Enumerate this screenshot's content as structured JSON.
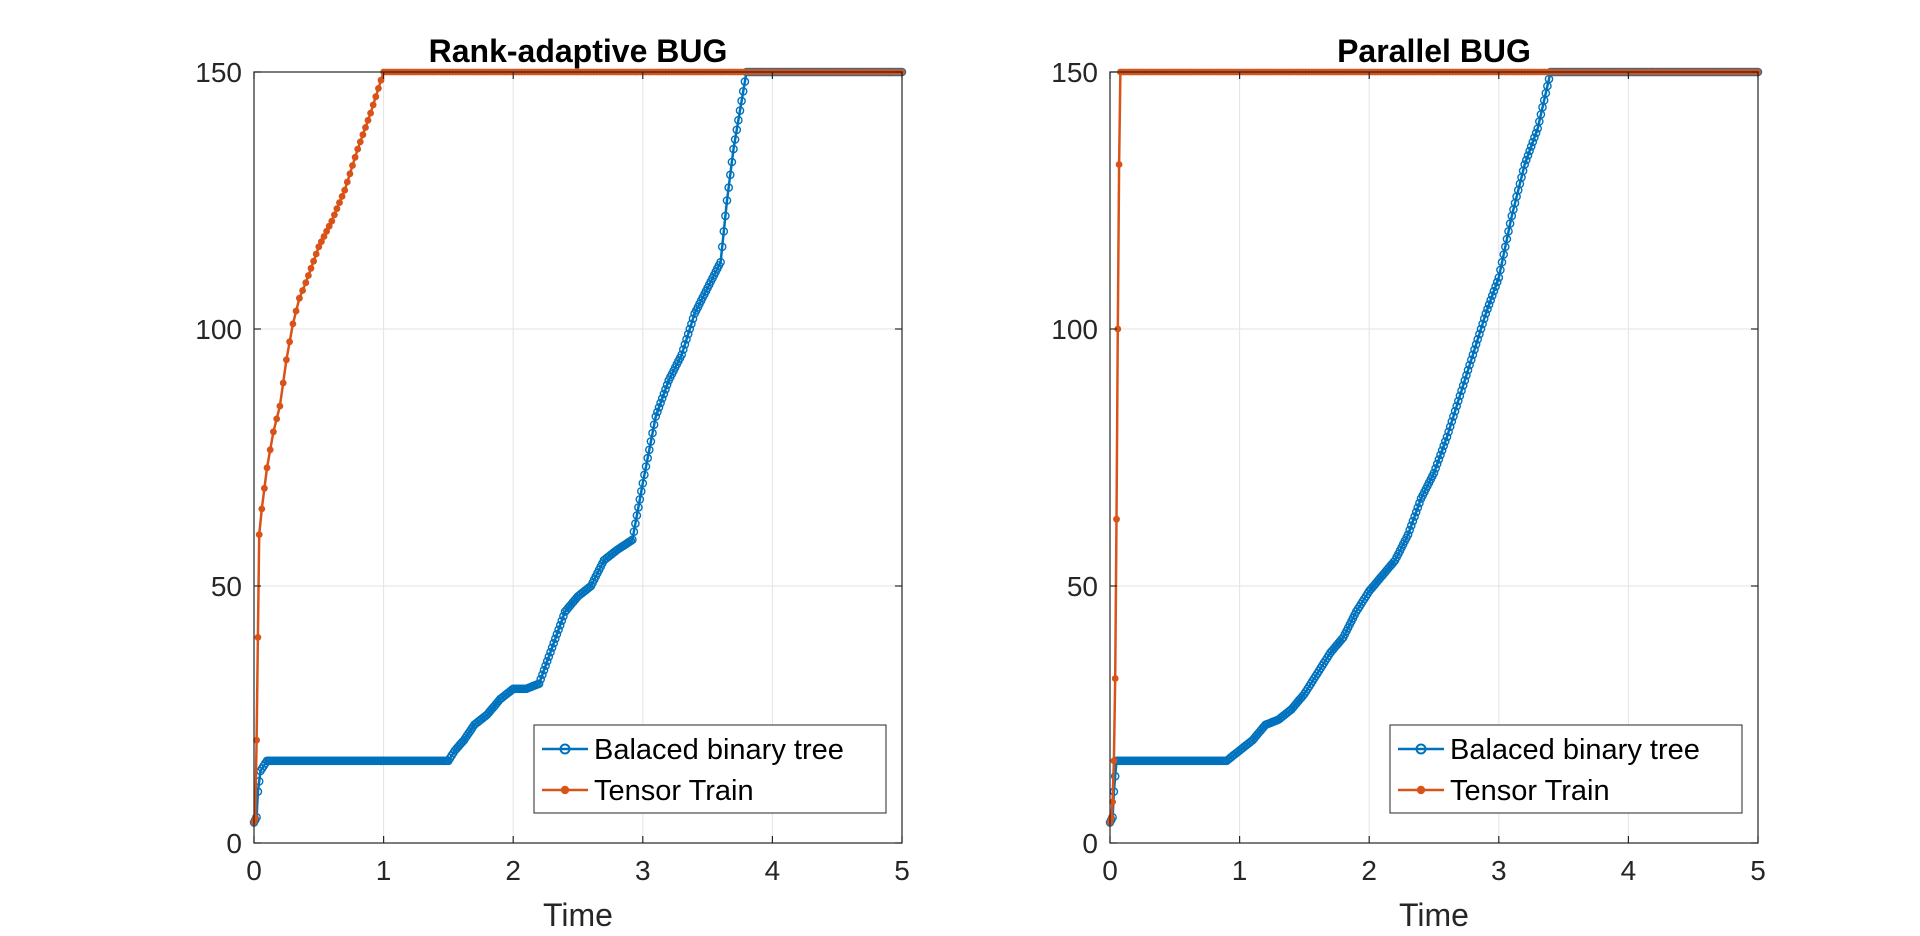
{
  "chart_data": [
    {
      "type": "line",
      "title": "Rank-adaptive BUG",
      "xlabel": "Time",
      "ylabel": "",
      "xlim": [
        0,
        5
      ],
      "ylim": [
        0,
        150
      ],
      "xticks": [
        "0",
        "1",
        "2",
        "3",
        "4",
        "5"
      ],
      "yticks": [
        "0",
        "50",
        "100",
        "150"
      ],
      "grid": true,
      "legend_position": "bottom-right",
      "series": [
        {
          "name": "Balaced binary tree",
          "color": "#0072BD",
          "marker": "circle",
          "points": [
            [
              0,
              4
            ],
            [
              0.02,
              5
            ],
            [
              0.03,
              10
            ],
            [
              0.05,
              14
            ],
            [
              0.1,
              16
            ],
            [
              0.5,
              16
            ],
            [
              1.0,
              16
            ],
            [
              1.5,
              16
            ],
            [
              1.55,
              18
            ],
            [
              1.62,
              20
            ],
            [
              1.7,
              23
            ],
            [
              1.8,
              25
            ],
            [
              1.9,
              28
            ],
            [
              2.0,
              30
            ],
            [
              2.1,
              30
            ],
            [
              2.2,
              31
            ],
            [
              2.3,
              38
            ],
            [
              2.4,
              45
            ],
            [
              2.5,
              48
            ],
            [
              2.6,
              50
            ],
            [
              2.7,
              55
            ],
            [
              2.8,
              57
            ],
            [
              2.92,
              59
            ],
            [
              3.0,
              70
            ],
            [
              3.1,
              83
            ],
            [
              3.2,
              90
            ],
            [
              3.3,
              95
            ],
            [
              3.4,
              103
            ],
            [
              3.5,
              108
            ],
            [
              3.6,
              113
            ],
            [
              3.65,
              125
            ],
            [
              3.7,
              135
            ],
            [
              3.8,
              150
            ],
            [
              4.0,
              150
            ],
            [
              4.5,
              150
            ],
            [
              5.0,
              150
            ]
          ]
        },
        {
          "name": "Tensor Train",
          "color": "#D95319",
          "marker": "dot",
          "points": [
            [
              0,
              4
            ],
            [
              0.01,
              5
            ],
            [
              0.02,
              20
            ],
            [
              0.03,
              40
            ],
            [
              0.04,
              60
            ],
            [
              0.06,
              65
            ],
            [
              0.1,
              73
            ],
            [
              0.15,
              80
            ],
            [
              0.2,
              85
            ],
            [
              0.25,
              94
            ],
            [
              0.3,
              101
            ],
            [
              0.35,
              106
            ],
            [
              0.4,
              109
            ],
            [
              0.5,
              116
            ],
            [
              0.6,
              121
            ],
            [
              0.7,
              127
            ],
            [
              0.8,
              135
            ],
            [
              0.9,
              142
            ],
            [
              1.0,
              150
            ],
            [
              2.0,
              150
            ],
            [
              3.0,
              150
            ],
            [
              4.0,
              150
            ],
            [
              5.0,
              150
            ]
          ]
        }
      ]
    },
    {
      "type": "line",
      "title": "Parallel BUG",
      "xlabel": "Time",
      "ylabel": "",
      "xlim": [
        0,
        5
      ],
      "ylim": [
        0,
        150
      ],
      "xticks": [
        "0",
        "1",
        "2",
        "3",
        "4",
        "5"
      ],
      "yticks": [
        "0",
        "50",
        "100",
        "150"
      ],
      "grid": true,
      "legend_position": "bottom-right",
      "series": [
        {
          "name": "Balaced binary tree",
          "color": "#0072BD",
          "marker": "circle",
          "points": [
            [
              0,
              4
            ],
            [
              0.02,
              5
            ],
            [
              0.03,
              10
            ],
            [
              0.05,
              16
            ],
            [
              0.3,
              16
            ],
            [
              0.6,
              16
            ],
            [
              0.9,
              16
            ],
            [
              1.0,
              18
            ],
            [
              1.1,
              20
            ],
            [
              1.2,
              23
            ],
            [
              1.3,
              24
            ],
            [
              1.4,
              26
            ],
            [
              1.5,
              29
            ],
            [
              1.6,
              33
            ],
            [
              1.7,
              37
            ],
            [
              1.8,
              40
            ],
            [
              1.9,
              45
            ],
            [
              2.0,
              49
            ],
            [
              2.1,
              52
            ],
            [
              2.2,
              55
            ],
            [
              2.3,
              60
            ],
            [
              2.4,
              67
            ],
            [
              2.5,
              72
            ],
            [
              2.6,
              79
            ],
            [
              2.7,
              87
            ],
            [
              2.8,
              95
            ],
            [
              2.9,
              103
            ],
            [
              3.0,
              110
            ],
            [
              3.1,
              122
            ],
            [
              3.2,
              132
            ],
            [
              3.3,
              139
            ],
            [
              3.4,
              150
            ],
            [
              3.5,
              150
            ],
            [
              4.0,
              150
            ],
            [
              4.5,
              150
            ],
            [
              5.0,
              150
            ]
          ]
        },
        {
          "name": "Tensor Train",
          "color": "#D95319",
          "marker": "dot",
          "points": [
            [
              0,
              4
            ],
            [
              0.01,
              5
            ],
            [
              0.02,
              8
            ],
            [
              0.03,
              16
            ],
            [
              0.04,
              32
            ],
            [
              0.05,
              63
            ],
            [
              0.06,
              100
            ],
            [
              0.07,
              132
            ],
            [
              0.08,
              150
            ],
            [
              1.0,
              150
            ],
            [
              2.0,
              150
            ],
            [
              3.0,
              150
            ],
            [
              4.0,
              150
            ],
            [
              5.0,
              150
            ]
          ]
        }
      ]
    }
  ]
}
